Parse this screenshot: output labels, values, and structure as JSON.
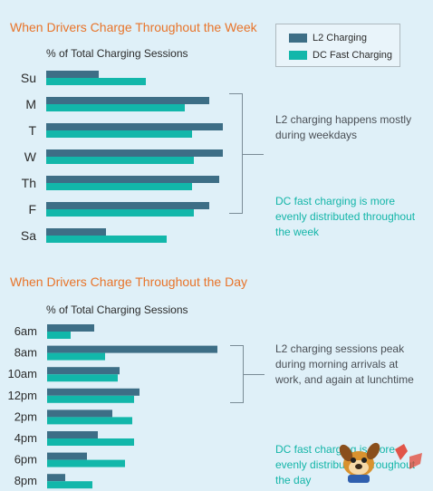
{
  "colors": {
    "l2": "#3d6e86",
    "dc": "#12b7aa",
    "title": "#e8742a",
    "background": "#dff0f8"
  },
  "legend": {
    "l2_label": "L2 Charging",
    "dc_label": "DC Fast Charging",
    "placement": "top-right"
  },
  "week": {
    "title": "When Drivers Charge Throughout the Week",
    "subtitle": "% of Total Charging Sessions",
    "note_l2": "L2 charging happens mostly during weekdays",
    "note_dc": "DC fast charging is more evenly distributed throughout the week"
  },
  "day": {
    "title": "When Drivers Charge Throughout the Day",
    "subtitle": "% of Total Charging Sessions",
    "note_l2": "L2 charging sessions peak during morning arrivals at work, and again at lunchtime",
    "note_dc": "DC fast charging is more evenly distributed throughout the day"
  },
  "chart_data": [
    {
      "type": "bar",
      "orientation": "horizontal",
      "title": "When Drivers Charge Throughout the Week",
      "xlabel": "% of Total Charging Sessions",
      "categories": [
        "Su",
        "M",
        "T",
        "W",
        "Th",
        "F",
        "Sa"
      ],
      "series": [
        {
          "name": "L2 Charging",
          "values": [
            5.8,
            18.0,
            19.5,
            19.5,
            19.1,
            18.0,
            6.6
          ]
        },
        {
          "name": "DC Fast Charging",
          "values": [
            11.0,
            15.3,
            16.1,
            16.3,
            16.1,
            16.3,
            13.3
          ]
        }
      ],
      "xlim": [
        0,
        20
      ],
      "grid": false
    },
    {
      "type": "bar",
      "orientation": "horizontal",
      "title": "When Drivers Charge Throughout the Day",
      "xlabel": "% of Total Charging Sessions",
      "categories": [
        "6am",
        "8am",
        "10am",
        "12pm",
        "2pm",
        "4pm",
        "6pm",
        "8pm"
      ],
      "series": [
        {
          "name": "L2 Charging",
          "values": [
            2.6,
            9.4,
            4.0,
            5.1,
            3.6,
            2.8,
            2.2,
            1.0
          ]
        },
        {
          "name": "DC Fast Charging",
          "values": [
            1.3,
            3.2,
            3.9,
            4.8,
            4.7,
            4.8,
            4.3,
            2.5
          ]
        }
      ],
      "xlim": [
        0,
        10
      ],
      "grid": false
    }
  ]
}
